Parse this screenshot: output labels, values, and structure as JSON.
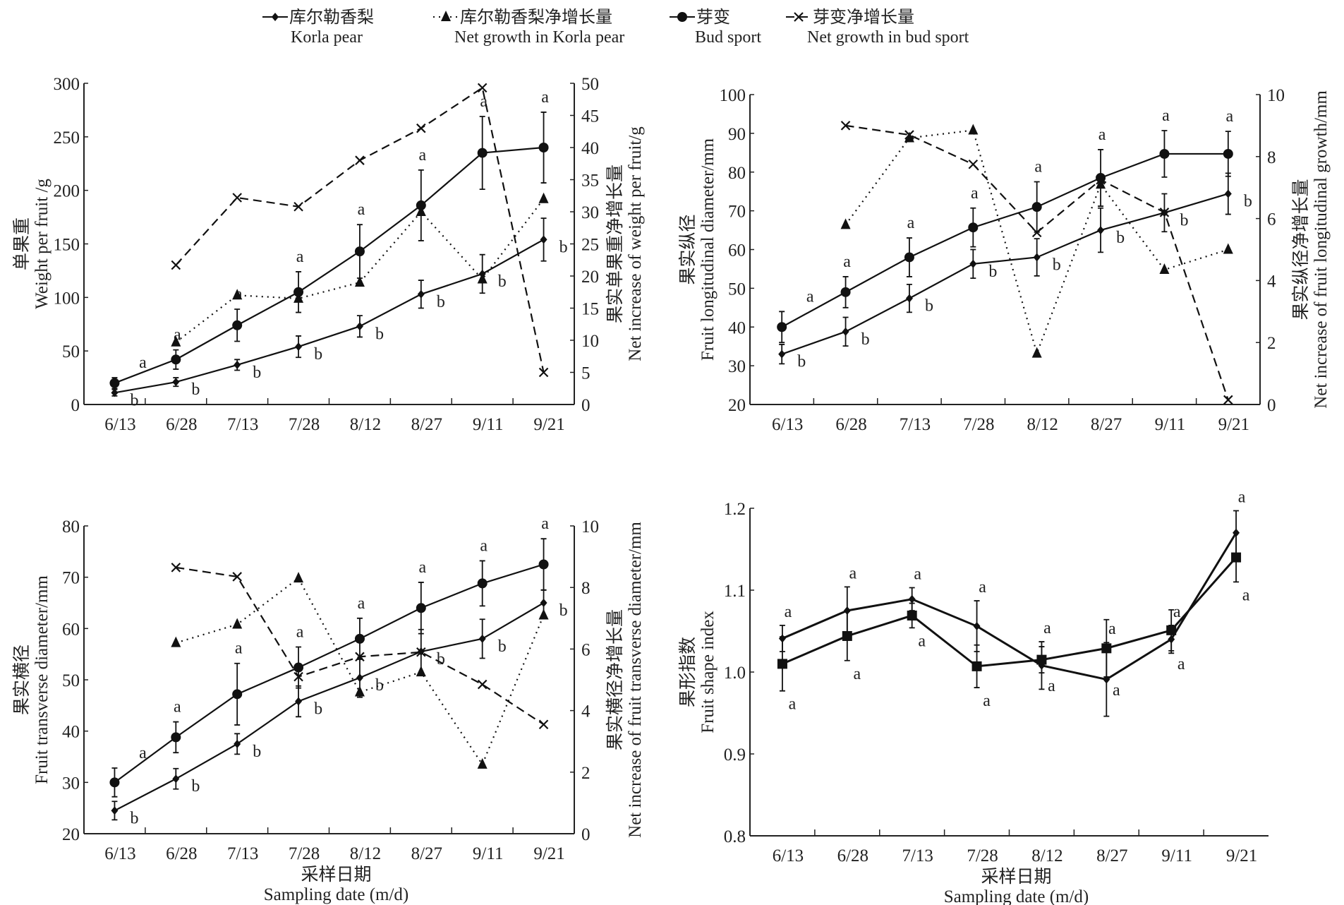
{
  "legend": [
    {
      "zh": "库尔勒香梨",
      "en": "Korla pear",
      "style": "solid",
      "marker": "diamond"
    },
    {
      "zh": "库尔勒香梨净增长量",
      "en": "Net growth in Korla pear",
      "style": "dotted",
      "marker": "triangle"
    },
    {
      "zh": "芽变",
      "en": "Bud sport",
      "style": "solid",
      "marker": "circle"
    },
    {
      "zh": "芽变净增长量",
      "en": "Net growth in bud sport",
      "style": "dashed",
      "marker": "x"
    }
  ],
  "chart_data": [
    {
      "type": "line",
      "categories": [
        "6/13",
        "6/28",
        "7/13",
        "7/28",
        "8/12",
        "8/27",
        "9/11",
        "9/21"
      ],
      "ylabel_zh": "单果重",
      "ylabel": "Weight per fruit /g",
      "y2label_zh": "果实单果重净增长量",
      "y2label": "Net increase of weight per fruit/g",
      "xlabel_zh": "",
      "xlabel": "",
      "ylim": [
        0,
        300
      ],
      "yticks": [
        0,
        50,
        100,
        150,
        200,
        250,
        300
      ],
      "y2lim": [
        0,
        50
      ],
      "y2ticks": [
        0,
        5,
        10,
        15,
        20,
        25,
        30,
        35,
        40,
        45,
        50
      ],
      "series": [
        {
          "key": "bud",
          "axis": "left",
          "style": "solid",
          "marker": "circle",
          "values": [
            20,
            42,
            74,
            105,
            143,
            186,
            235,
            240
          ],
          "errors": [
            5,
            9,
            15,
            19,
            25,
            33,
            34,
            33
          ],
          "letters": [
            "a",
            "a",
            "a",
            "a",
            "a",
            "a",
            "a",
            "a"
          ]
        },
        {
          "key": "korla",
          "axis": "left",
          "style": "solid",
          "marker": "diamond",
          "values": [
            11,
            21,
            37,
            54,
            73,
            103,
            122,
            154
          ],
          "errors": [
            3,
            4,
            5,
            10,
            10,
            13,
            18,
            20
          ],
          "letters": [
            "b",
            "b",
            "b",
            "b",
            "b",
            "b",
            "b",
            "b"
          ]
        },
        {
          "key": "net_korla",
          "axis": "right",
          "style": "dotted",
          "marker": "triangle",
          "values": [
            null,
            9.7,
            17,
            16.5,
            19,
            30,
            19.5,
            32
          ]
        },
        {
          "key": "net_bud",
          "axis": "right",
          "style": "dashed",
          "marker": "x",
          "values": [
            null,
            21.7,
            32.2,
            30.8,
            38,
            43,
            49.3,
            5
          ]
        }
      ]
    },
    {
      "type": "line",
      "categories": [
        "6/13",
        "6/28",
        "7/13",
        "7/28",
        "8/12",
        "8/27",
        "9/11",
        "9/21"
      ],
      "ylabel_zh": "果实纵径",
      "ylabel": "Fruit longitudinal diameter/mm",
      "y2label_zh": "果实纵径净增长量",
      "y2label": "Net increase of fruit longitudinal growth/mm",
      "xlabel_zh": "",
      "xlabel": "",
      "ylim": [
        20,
        100
      ],
      "yticks": [
        20,
        30,
        40,
        50,
        60,
        70,
        80,
        90,
        100
      ],
      "y2lim": [
        0,
        10
      ],
      "y2ticks": [
        0,
        2,
        4,
        6,
        8,
        10
      ],
      "series": [
        {
          "key": "bud",
          "axis": "left",
          "style": "solid",
          "marker": "circle",
          "values": [
            40,
            49,
            58,
            65.7,
            71,
            78.5,
            84.7,
            84.7
          ],
          "errors": [
            4,
            4,
            5,
            5,
            6.5,
            7.3,
            6,
            5.8
          ],
          "letters": [
            "a",
            "a",
            "a",
            "a",
            "a",
            "a",
            "a",
            "a"
          ]
        },
        {
          "key": "korla",
          "axis": "left",
          "style": "solid",
          "marker": "diamond",
          "values": [
            33,
            38.8,
            47.4,
            56.3,
            58,
            65,
            69.5,
            74.4
          ],
          "errors": [
            2.5,
            3.7,
            3.6,
            3.7,
            4.8,
            5.7,
            4.9,
            5.3
          ],
          "letters": [
            "b",
            "b",
            "b",
            "b",
            "b",
            "b",
            "b",
            "b"
          ]
        },
        {
          "key": "net_korla",
          "axis": "right",
          "style": "dotted",
          "marker": "triangle",
          "values": [
            null,
            5.8,
            8.6,
            8.85,
            1.65,
            7.1,
            4.35,
            5.0
          ]
        },
        {
          "key": "net_bud",
          "axis": "right",
          "style": "dashed",
          "marker": "x",
          "values": [
            null,
            9.0,
            8.7,
            7.75,
            5.55,
            7.25,
            6.2,
            0.15
          ]
        }
      ]
    },
    {
      "type": "line",
      "categories": [
        "6/13",
        "6/28",
        "7/13",
        "7/28",
        "8/12",
        "8/27",
        "9/11",
        "9/21"
      ],
      "ylabel_zh": "果实横径",
      "ylabel": "Fruit transverse diameter/mm",
      "y2label_zh": "果实横径净增长量",
      "y2label": "Net increase of fruit transverse diameter/mm",
      "xlabel_zh": "采样日期",
      "xlabel": "Sampling date (m/d)",
      "ylim": [
        20,
        80
      ],
      "yticks": [
        20,
        30,
        40,
        50,
        60,
        70,
        80
      ],
      "y2lim": [
        0,
        10
      ],
      "y2ticks": [
        0,
        2,
        4,
        6,
        8,
        10
      ],
      "series": [
        {
          "key": "bud",
          "axis": "left",
          "style": "solid",
          "marker": "circle",
          "values": [
            30,
            38.8,
            47.2,
            52.4,
            58,
            64,
            68.8,
            72.5
          ],
          "errors": [
            2.8,
            3,
            6,
            4,
            4,
            5,
            4.4,
            5
          ],
          "letters": [
            "a",
            "a",
            "a",
            "a",
            "a",
            "a",
            "a",
            "a"
          ]
        },
        {
          "key": "korla",
          "axis": "left",
          "style": "solid",
          "marker": "diamond",
          "values": [
            24.5,
            30.7,
            37.5,
            45.8,
            50.4,
            55.5,
            58,
            65
          ],
          "errors": [
            1.8,
            2,
            2,
            3,
            3.8,
            4.3,
            3.8,
            2.5
          ],
          "letters": [
            "b",
            "b",
            "b",
            "b",
            "b",
            "b",
            "b",
            "b"
          ]
        },
        {
          "key": "net_korla",
          "axis": "right",
          "style": "dotted",
          "marker": "triangle",
          "values": [
            null,
            6.2,
            6.8,
            8.3,
            4.6,
            5.25,
            2.25,
            7.1
          ]
        },
        {
          "key": "net_bud",
          "axis": "right",
          "style": "dashed",
          "marker": "x",
          "values": [
            null,
            8.65,
            8.35,
            5.1,
            5.75,
            5.9,
            4.85,
            3.55
          ]
        }
      ]
    },
    {
      "type": "line",
      "categories": [
        "6/13",
        "6/28",
        "7/13",
        "7/28",
        "8/12",
        "8/27",
        "9/11",
        "9/21"
      ],
      "ylabel_zh": "果形指数",
      "ylabel": "Fruit shape index",
      "xlabel_zh": "采样日期",
      "xlabel": "Sampling date  (m/d)",
      "ylim": [
        0.8,
        1.2
      ],
      "yticks": [
        "0.8",
        "0.9",
        "1.0",
        "1.1",
        "1.2"
      ],
      "series": [
        {
          "key": "korla",
          "axis": "left",
          "style": "solid-bold",
          "marker": "diamond",
          "values": [
            1.041,
            1.075,
            1.089,
            1.056,
            1.008,
            0.991,
            1.04,
            1.17
          ],
          "errors": [
            0.016,
            0.029,
            0.014,
            0.031,
            0.029,
            0.045,
            0.017,
            0.027
          ],
          "letters": [
            "a",
            "a",
            "a",
            "a",
            "a",
            "a",
            "a",
            "a"
          ]
        },
        {
          "key": "bud",
          "axis": "left",
          "style": "solid-bold",
          "marker": "square",
          "values": [
            1.01,
            1.044,
            1.069,
            1.007,
            1.015,
            1.029,
            1.051,
            1.14
          ],
          "errors": [
            0.033,
            0.03,
            0.015,
            0.026,
            0.016,
            0.035,
            0.025,
            0.03
          ],
          "letters": [
            "a",
            "a",
            "a",
            "a",
            "a",
            "a",
            "a",
            "a"
          ]
        }
      ]
    }
  ]
}
